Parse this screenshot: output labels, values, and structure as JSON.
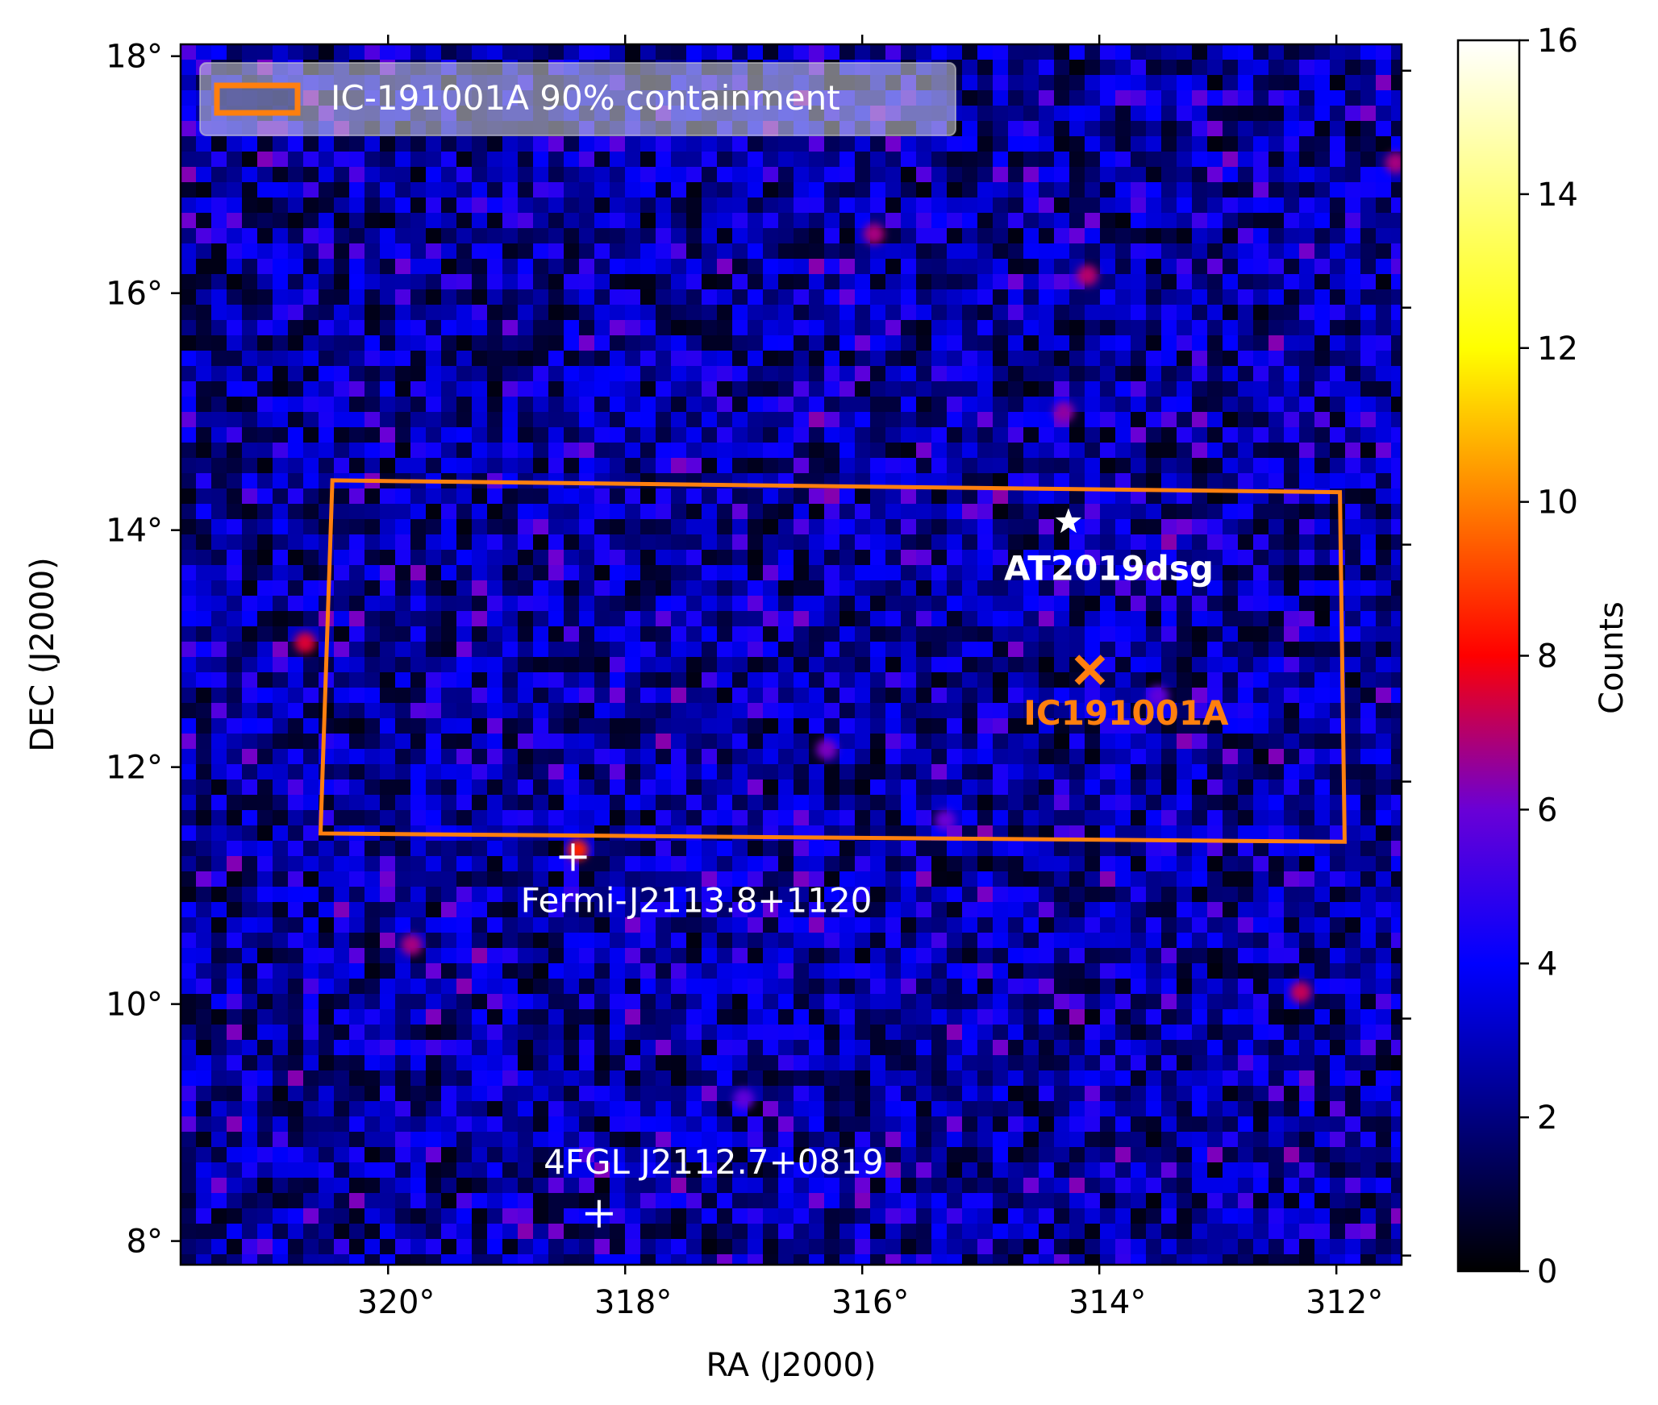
{
  "chart_data": {
    "type": "heatmap",
    "title": "",
    "xlabel": "RA (J2000)",
    "ylabel": "DEC (J2000)",
    "x_axis_inverted": true,
    "xlim": [
      321.75,
      311.45
    ],
    "ylim": [
      7.8,
      18.1
    ],
    "x_ticks": [
      320,
      318,
      316,
      314,
      312
    ],
    "x_tick_labels": [
      "320°",
      "318°",
      "316°",
      "314°",
      "312°"
    ],
    "y_ticks": [
      8,
      10,
      12,
      14,
      16,
      18
    ],
    "y_tick_labels": [
      "8°",
      "10°",
      "12°",
      "14°",
      "16°",
      "18°"
    ],
    "colormap": "gnuplot2",
    "colorbar": {
      "label": "Counts",
      "range": [
        0,
        16
      ],
      "ticks": [
        0,
        2,
        4,
        6,
        8,
        10,
        12,
        14,
        16
      ],
      "tick_labels": [
        "0",
        "2",
        "4",
        "6",
        "8",
        "10",
        "12",
        "14",
        "16"
      ],
      "stops": [
        {
          "v": 0,
          "color": "#000000"
        },
        {
          "v": 2.5,
          "color": "#0000a0"
        },
        {
          "v": 4,
          "color": "#0000ff"
        },
        {
          "v": 6,
          "color": "#6a00d6"
        },
        {
          "v": 8,
          "color": "#ff0000"
        },
        {
          "v": 10,
          "color": "#ff8000"
        },
        {
          "v": 12,
          "color": "#ffff00"
        },
        {
          "v": 16,
          "color": "#ffffff"
        }
      ]
    },
    "background_level": 2.5,
    "hotspots": [
      {
        "ra": 318.4,
        "dec": 11.3,
        "level": 8.5
      },
      {
        "ra": 320.7,
        "dec": 13.05,
        "level": 7.5
      },
      {
        "ra": 312.3,
        "dec": 10.1,
        "level": 7.2
      },
      {
        "ra": 314.1,
        "dec": 16.15,
        "level": 7.0
      },
      {
        "ra": 315.9,
        "dec": 16.5,
        "level": 6.8
      },
      {
        "ra": 319.8,
        "dec": 10.5,
        "level": 6.8
      },
      {
        "ra": 311.5,
        "dec": 17.1,
        "level": 6.8
      },
      {
        "ra": 314.3,
        "dec": 15.0,
        "level": 6.5
      },
      {
        "ra": 316.3,
        "dec": 12.15,
        "level": 6.2
      },
      {
        "ra": 315.3,
        "dec": 11.55,
        "level": 6.0
      },
      {
        "ra": 317.0,
        "dec": 9.2,
        "level": 5.8
      },
      {
        "ra": 313.5,
        "dec": 12.6,
        "level": 5.8
      }
    ],
    "legend": {
      "label": "IC-191001A 90% containment",
      "placement": "upper-left",
      "color": "#ff7f0e"
    },
    "containment_region": {
      "corners_ra_dec": [
        [
          320.47,
          14.42
        ],
        [
          311.97,
          14.32
        ],
        [
          311.93,
          11.37
        ],
        [
          320.57,
          11.44
        ]
      ],
      "color": "#ff7f0e"
    },
    "sources": [
      {
        "name": "AT2019dsg",
        "ra": 314.26,
        "dec": 14.07,
        "marker": "star",
        "color": "#ffffff",
        "bold": true
      },
      {
        "name": "IC191001A",
        "ra": 314.08,
        "dec": 12.82,
        "marker": "x",
        "color": "#ff7f0e",
        "bold": true
      },
      {
        "name": "Fermi-J2113.8+1120",
        "ra": 318.44,
        "dec": 11.24,
        "marker": "plus",
        "color": "#ffffff",
        "bold": false
      },
      {
        "name": "4FGL J2112.7+0819",
        "ra": 318.22,
        "dec": 8.23,
        "marker": "plus",
        "color": "#ffffff",
        "bold": false
      }
    ]
  }
}
